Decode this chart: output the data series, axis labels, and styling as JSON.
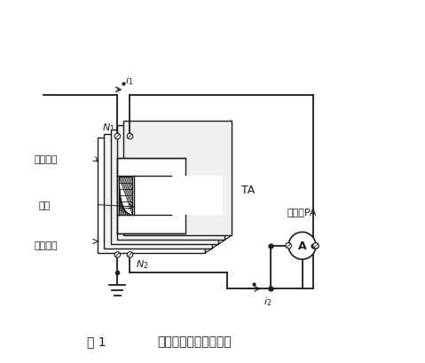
{
  "title_fig": "图 1",
  "title_desc": "电流互感器工作原理图",
  "bg_color": "#ffffff",
  "line_color": "#1a1a1a",
  "figsize": [
    4.79,
    4.1
  ],
  "dpi": 100,
  "label_yi": "一次绕组",
  "label_tie": "铁芯",
  "label_er": "二次绕组",
  "label_TA": "TA",
  "label_ammeter_name": "电流表PA",
  "label_N1": "N_1",
  "label_N2": "N_2",
  "label_i1": "i_1",
  "label_i2": "i_2"
}
